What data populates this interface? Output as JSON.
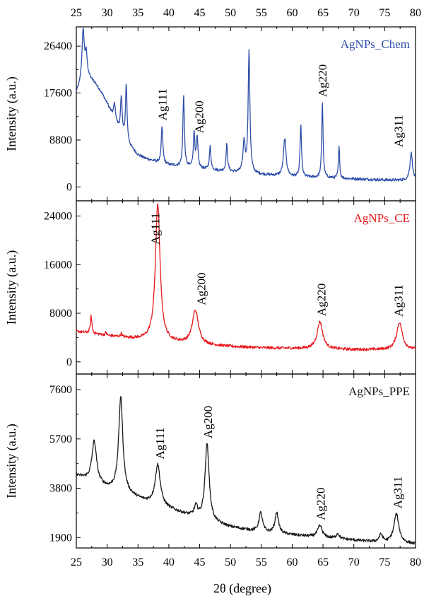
{
  "chart_data": {
    "type": "line",
    "xlabel": "2θ (degree)",
    "x_range": [
      25,
      80
    ],
    "x_ticks": [
      25,
      30,
      35,
      40,
      45,
      50,
      55,
      60,
      65,
      70,
      75,
      80
    ],
    "x_tick_labels": [
      "25",
      "30",
      "35",
      "40",
      "45",
      "50",
      "55",
      "60",
      "65",
      "70",
      "75",
      "80"
    ],
    "grid": false,
    "legend_placement": "top-right",
    "panels": [
      {
        "series_name": "AgNPs_Chem",
        "color": "#2f4fa8",
        "ylabel": "Intensity (a.u.)",
        "ylim": [
          -2600,
          30000
        ],
        "y_ticks": [
          0,
          8800,
          17600,
          26400
        ],
        "y_tick_labels": [
          "0",
          "8800",
          "17600",
          "26400"
        ],
        "baseline": [
          [
            25,
            17600
          ],
          [
            26,
            18800
          ],
          [
            27,
            20200
          ],
          [
            28,
            19400
          ],
          [
            29,
            17800
          ],
          [
            30,
            15600
          ],
          [
            31,
            13000
          ],
          [
            32,
            10600
          ],
          [
            33,
            8700
          ],
          [
            34,
            7200
          ],
          [
            35,
            6000
          ],
          [
            36,
            5400
          ],
          [
            38,
            4700
          ],
          [
            40,
            4100
          ],
          [
            45,
            3400
          ],
          [
            50,
            2800
          ],
          [
            55,
            2300
          ],
          [
            60,
            1900
          ],
          [
            65,
            1700
          ],
          [
            70,
            1500
          ],
          [
            75,
            1300
          ],
          [
            80,
            1200
          ]
        ],
        "peaks": [
          {
            "x": 26.1,
            "y": 29000,
            "w": 0.25
          },
          {
            "x": 26.6,
            "y": 24000,
            "w": 0.2
          },
          {
            "x": 31.2,
            "y": 15600,
            "w": 0.18
          },
          {
            "x": 32.3,
            "y": 16600,
            "w": 0.16
          },
          {
            "x": 33.1,
            "y": 19300,
            "w": 0.14
          },
          {
            "x": 38.9,
            "y": 11400,
            "w": 0.15
          },
          {
            "x": 42.4,
            "y": 17400,
            "w": 0.14
          },
          {
            "x": 44.1,
            "y": 10100,
            "w": 0.15
          },
          {
            "x": 44.6,
            "y": 9000,
            "w": 0.15
          },
          {
            "x": 46.7,
            "y": 7500,
            "w": 0.15
          },
          {
            "x": 49.4,
            "y": 7900,
            "w": 0.15
          },
          {
            "x": 52.2,
            "y": 8300,
            "w": 0.2
          },
          {
            "x": 53.0,
            "y": 25200,
            "w": 0.17
          },
          {
            "x": 58.8,
            "y": 9100,
            "w": 0.25
          },
          {
            "x": 61.4,
            "y": 11500,
            "w": 0.14
          },
          {
            "x": 64.9,
            "y": 15800,
            "w": 0.13
          },
          {
            "x": 67.6,
            "y": 7500,
            "w": 0.12
          },
          {
            "x": 79.3,
            "y": 6400,
            "w": 0.25
          }
        ],
        "peak_labels": [
          {
            "text": "Ag111",
            "x": 38.9
          },
          {
            "text": "Ag200",
            "x": 44.9
          },
          {
            "text": "Ag220",
            "x": 64.9
          },
          {
            "text": "Ag311",
            "x": 77.2
          }
        ]
      },
      {
        "series_name": "AgNPs_CE",
        "color": "#e8191e",
        "ylabel": "Intensity (a.u.)",
        "ylim": [
          -2000,
          26500
        ],
        "y_ticks": [
          0,
          8000,
          16000,
          24000
        ],
        "y_tick_labels": [
          "0",
          "8000",
          "16000",
          "24000"
        ],
        "baseline": [
          [
            25,
            5000
          ],
          [
            30,
            4300
          ],
          [
            35,
            3700
          ],
          [
            40,
            3200
          ],
          [
            45,
            2800
          ],
          [
            50,
            2500
          ],
          [
            55,
            2300
          ],
          [
            60,
            2200
          ],
          [
            65,
            2100
          ],
          [
            70,
            2000
          ],
          [
            75,
            2000
          ],
          [
            80,
            2000
          ]
        ],
        "peaks": [
          {
            "x": 27.4,
            "y": 7500,
            "w": 0.15
          },
          {
            "x": 29.8,
            "y": 4800,
            "w": 0.12
          },
          {
            "x": 32.3,
            "y": 4600,
            "w": 0.12
          },
          {
            "x": 38.2,
            "y": 26000,
            "w": 0.45
          },
          {
            "x": 44.3,
            "y": 8400,
            "w": 0.6
          },
          {
            "x": 64.5,
            "y": 6600,
            "w": 0.55
          },
          {
            "x": 77.4,
            "y": 6500,
            "w": 0.55
          }
        ],
        "peak_labels": [
          {
            "text": "Ag111",
            "x": 37.8
          },
          {
            "text": "Ag200",
            "x": 45.2
          },
          {
            "text": "Ag220",
            "x": 64.7
          },
          {
            "text": "Ag311",
            "x": 77.2
          }
        ]
      },
      {
        "series_name": "AgNPs_PPE",
        "color": "#1a1a1a",
        "ylabel": "Intensity (a.u.)",
        "ylim": [
          1500,
          8200
        ],
        "y_ticks": [
          1900,
          3800,
          5700,
          7600
        ],
        "y_tick_labels": [
          "1900",
          "3800",
          "5700",
          "7600"
        ],
        "baseline": [
          [
            25,
            4300
          ],
          [
            27,
            4100
          ],
          [
            30,
            3800
          ],
          [
            33,
            3600
          ],
          [
            36,
            3300
          ],
          [
            40,
            3000
          ],
          [
            45,
            2600
          ],
          [
            50,
            2300
          ],
          [
            55,
            2100
          ],
          [
            60,
            2000
          ],
          [
            65,
            1900
          ],
          [
            70,
            1800
          ],
          [
            75,
            1700
          ],
          [
            80,
            1650
          ]
        ],
        "peaks": [
          {
            "x": 27.9,
            "y": 5600,
            "w": 0.45
          },
          {
            "x": 32.2,
            "y": 7300,
            "w": 0.4
          },
          {
            "x": 38.2,
            "y": 4700,
            "w": 0.5
          },
          {
            "x": 44.4,
            "y": 3050,
            "w": 0.35
          },
          {
            "x": 46.2,
            "y": 5500,
            "w": 0.4
          },
          {
            "x": 54.9,
            "y": 2850,
            "w": 0.35
          },
          {
            "x": 57.5,
            "y": 2850,
            "w": 0.35
          },
          {
            "x": 64.5,
            "y": 2350,
            "w": 0.45
          },
          {
            "x": 67.4,
            "y": 2050,
            "w": 0.3
          },
          {
            "x": 74.4,
            "y": 2000,
            "w": 0.35
          },
          {
            "x": 76.9,
            "y": 2800,
            "w": 0.5
          }
        ],
        "peak_labels": [
          {
            "text": "Ag111",
            "x": 38.5
          },
          {
            "text": "Ag200",
            "x": 46.3
          },
          {
            "text": "Ag220",
            "x": 64.6
          },
          {
            "text": "Ag311",
            "x": 77.1
          }
        ]
      }
    ]
  }
}
